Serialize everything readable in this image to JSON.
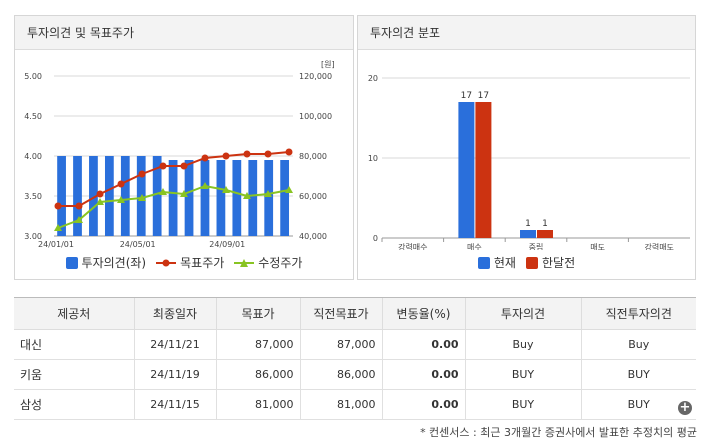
{
  "left_panel": {
    "title": "투자의견 및 목표주가",
    "unit_label": "[원]",
    "legend": [
      {
        "label": "투자의견(좌)",
        "color": "#2a6fdb",
        "kind": "square"
      },
      {
        "label": "목표주가",
        "color": "#cc3311",
        "kind": "circle-line"
      },
      {
        "label": "수정주가",
        "color": "#88c422",
        "kind": "triangle-line"
      }
    ]
  },
  "right_panel": {
    "title": "투자의견 분포",
    "legend": [
      {
        "label": "현재",
        "color": "#2a6fdb"
      },
      {
        "label": "한달전",
        "color": "#cc3311"
      }
    ]
  },
  "chart_data": [
    {
      "type": "bar",
      "title": "투자의견 및 목표주가",
      "x_tick_labels": [
        "24/01/01",
        "24/05/01",
        "24/09/01"
      ],
      "left_axis": {
        "ylim": [
          3.0,
          5.0
        ],
        "ticks": [
          "3.00",
          "3.50",
          "4.00",
          "4.50",
          "5.00"
        ]
      },
      "right_axis": {
        "ylim": [
          40000,
          120000
        ],
        "ticks": [
          "40,000",
          "60,000",
          "80,000",
          "100,000",
          "120,000"
        ],
        "unit": "[원]"
      },
      "grid": true,
      "series": [
        {
          "name": "투자의견(좌)",
          "type": "bar",
          "axis": "left",
          "values": [
            4.0,
            4.0,
            4.0,
            4.0,
            4.0,
            4.0,
            4.0,
            3.95,
            3.95,
            3.95,
            3.95,
            3.95,
            3.95,
            3.95,
            3.95
          ]
        },
        {
          "name": "목표주가",
          "type": "line",
          "axis": "right",
          "values": [
            55000,
            55000,
            61000,
            66000,
            71000,
            75000,
            75000,
            79000,
            80000,
            81000,
            81000,
            82000
          ]
        },
        {
          "name": "수정주가",
          "type": "line",
          "axis": "right",
          "values": [
            44000,
            48000,
            57000,
            58000,
            59000,
            62000,
            61000,
            65000,
            63000,
            60000,
            61000,
            63000
          ]
        }
      ]
    },
    {
      "type": "bar",
      "title": "투자의견 분포",
      "categories": [
        "강력매수",
        "매수",
        "중립",
        "매도",
        "강력매도"
      ],
      "ylim": [
        0,
        20
      ],
      "y_ticks": [
        "0",
        "10",
        "20"
      ],
      "grid": true,
      "series": [
        {
          "name": "현재",
          "values": [
            0,
            17,
            1,
            0,
            0
          ]
        },
        {
          "name": "한달전",
          "values": [
            0,
            17,
            1,
            0,
            0
          ]
        }
      ]
    }
  ],
  "table": {
    "headers": [
      "제공처",
      "최종일자",
      "목표가",
      "직전목표가",
      "변동율(%)",
      "투자의견",
      "직전투자의견"
    ],
    "rows": [
      [
        "대신",
        "24/11/21",
        "87,000",
        "87,000",
        "0.00",
        "Buy",
        "Buy"
      ],
      [
        "키움",
        "24/11/19",
        "86,000",
        "86,000",
        "0.00",
        "BUY",
        "BUY"
      ],
      [
        "삼성",
        "24/11/15",
        "81,000",
        "81,000",
        "0.00",
        "BUY",
        "BUY"
      ]
    ],
    "expand_icon": "plus-circle-icon"
  },
  "footnote": "* 컨센서스 : 최근 3개월간 증권사에서 발표한 추정치의 평균"
}
